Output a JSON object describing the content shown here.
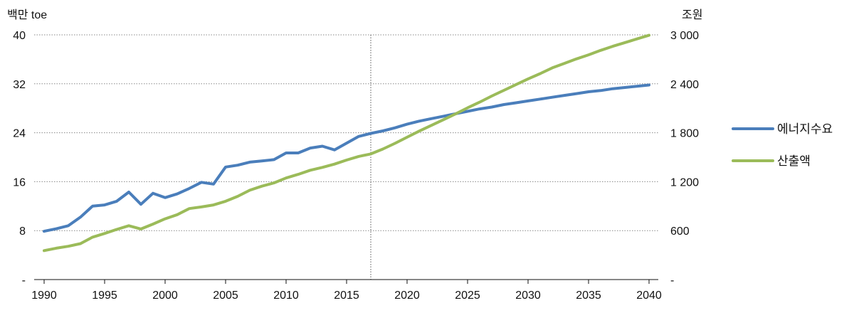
{
  "chart_data": {
    "type": "line",
    "left_axis": {
      "title": "백만 toe",
      "ylim": [
        0,
        40
      ],
      "ticks": [
        0,
        8,
        16,
        24,
        32,
        40
      ],
      "tick_labels": [
        "-",
        "8",
        "16",
        "24",
        "32",
        "40"
      ]
    },
    "right_axis": {
      "title": "조원",
      "ylim": [
        0,
        3000
      ],
      "ticks": [
        0,
        600,
        1200,
        1800,
        2400,
        3000
      ],
      "tick_labels": [
        "-",
        "600",
        "1 200",
        "1 800",
        "2 400",
        "3 000"
      ]
    },
    "x_axis": {
      "xlim": [
        1990,
        2040
      ],
      "ticks": [
        1990,
        1995,
        2000,
        2005,
        2010,
        2015,
        2020,
        2025,
        2030,
        2035,
        2040
      ],
      "tick_labels": [
        "1990",
        "1995",
        "2000",
        "2005",
        "2010",
        "2015",
        "2020",
        "2025",
        "2030",
        "2035",
        "2040"
      ]
    },
    "grid": "horizontal-dotted",
    "vertical_marker_x": 2017,
    "legend_position": "right",
    "series": [
      {
        "name": "에너지수요",
        "axis": "left",
        "color": "#4a7ebb",
        "x": [
          1990,
          1991,
          1992,
          1993,
          1994,
          1995,
          1996,
          1997,
          1998,
          1999,
          2000,
          2001,
          2002,
          2003,
          2004,
          2005,
          2006,
          2007,
          2008,
          2009,
          2010,
          2011,
          2012,
          2013,
          2014,
          2015,
          2016,
          2017,
          2018,
          2019,
          2020,
          2021,
          2022,
          2023,
          2024,
          2025,
          2026,
          2027,
          2028,
          2029,
          2030,
          2031,
          2032,
          2033,
          2034,
          2035,
          2036,
          2037,
          2038,
          2039,
          2040
        ],
        "values": [
          7.9,
          8.3,
          8.8,
          10.2,
          12.0,
          12.2,
          12.8,
          14.3,
          12.3,
          14.1,
          13.4,
          14.0,
          14.9,
          15.9,
          15.6,
          18.4,
          18.7,
          19.2,
          19.4,
          19.6,
          20.7,
          20.7,
          21.5,
          21.8,
          21.2,
          22.3,
          23.4,
          23.9,
          24.3,
          24.8,
          25.4,
          25.9,
          26.3,
          26.7,
          27.1,
          27.5,
          27.9,
          28.2,
          28.6,
          28.9,
          29.2,
          29.5,
          29.8,
          30.1,
          30.4,
          30.7,
          30.9,
          31.2,
          31.4,
          31.6,
          31.8
        ]
      },
      {
        "name": "산출액",
        "axis": "right",
        "color": "#9bbb59",
        "x": [
          1990,
          1991,
          1992,
          1993,
          1994,
          1995,
          1996,
          1997,
          1998,
          1999,
          2000,
          2001,
          2002,
          2003,
          2004,
          2005,
          2006,
          2007,
          2008,
          2009,
          2010,
          2011,
          2012,
          2013,
          2014,
          2015,
          2016,
          2017,
          2018,
          2019,
          2020,
          2021,
          2022,
          2023,
          2024,
          2025,
          2026,
          2027,
          2028,
          2029,
          2030,
          2031,
          2032,
          2033,
          2034,
          2035,
          2036,
          2037,
          2038,
          2039,
          2040
        ],
        "values": [
          355,
          385,
          408,
          440,
          520,
          565,
          615,
          660,
          620,
          680,
          745,
          795,
          870,
          890,
          915,
          960,
          1020,
          1095,
          1145,
          1185,
          1245,
          1290,
          1340,
          1375,
          1415,
          1465,
          1510,
          1540,
          1600,
          1670,
          1745,
          1820,
          1890,
          1960,
          2030,
          2105,
          2175,
          2250,
          2320,
          2390,
          2460,
          2525,
          2595,
          2650,
          2705,
          2755,
          2810,
          2860,
          2905,
          2950,
          2995
        ]
      }
    ]
  }
}
